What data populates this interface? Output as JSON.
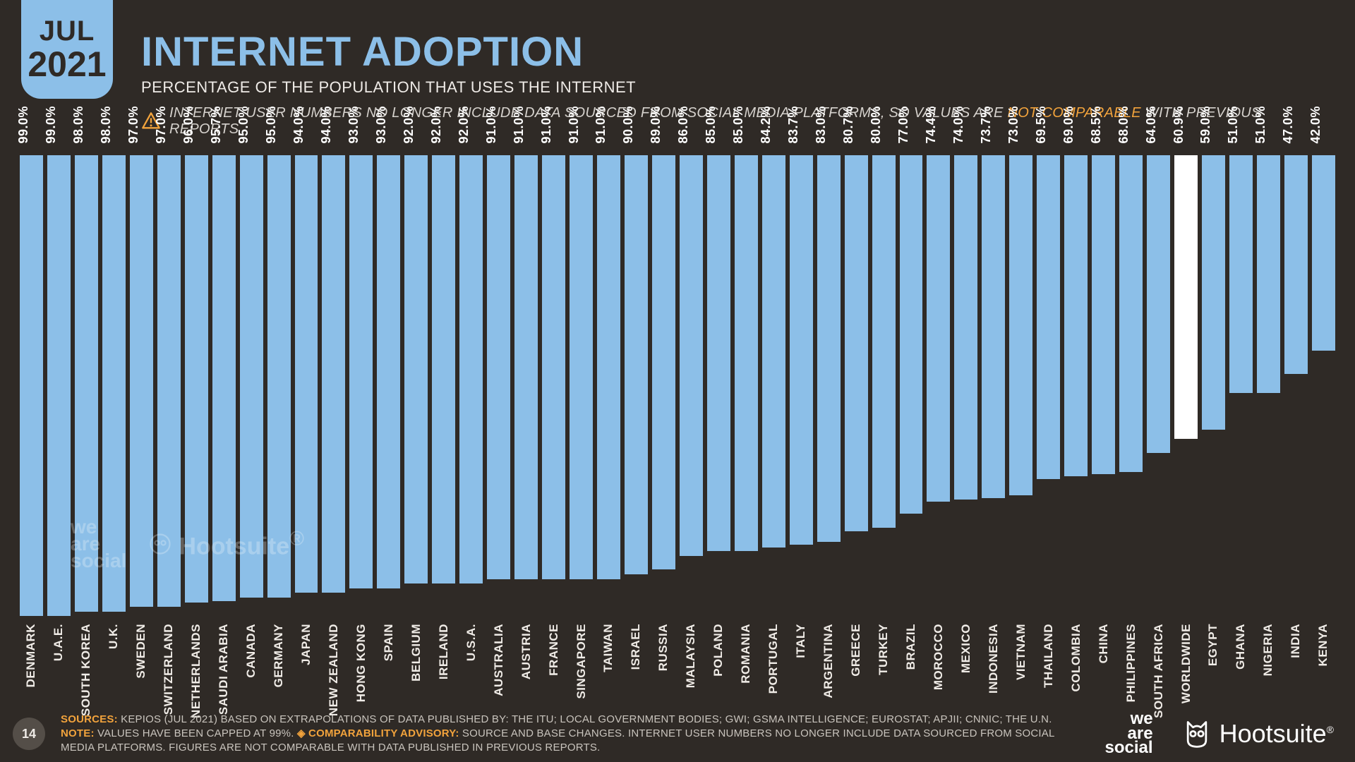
{
  "date": {
    "month": "JUL",
    "year": "2021"
  },
  "header": {
    "title": "INTERNET ADOPTION",
    "subtitle": "PERCENTAGE OF THE POPULATION THAT USES THE INTERNET",
    "warning_prefix": "INTERNET USER NUMBERS NO LONGER INCLUDE DATA SOURCED FROM SOCIAL MEDIA PLATFORMS, SO VALUES ARE ",
    "warning_highlight": "NOT COMPARABLE",
    "warning_suffix": " WITH PREVIOUS REPORTS"
  },
  "chart": {
    "type": "bar",
    "ymax": 100,
    "bar_color": "#8cbfe8",
    "highlight_color": "#ffffff",
    "background_color": "#2f2a26",
    "value_suffix": "%",
    "label_fontsize": 18,
    "axis_fontsize": 17,
    "bars": [
      {
        "label": "DENMARK",
        "value": 99.0
      },
      {
        "label": "U.A.E.",
        "value": 99.0
      },
      {
        "label": "SOUTH KOREA",
        "value": 98.0
      },
      {
        "label": "U.K.",
        "value": 98.0
      },
      {
        "label": "SWEDEN",
        "value": 97.0
      },
      {
        "label": "SWITZERLAND",
        "value": 97.0
      },
      {
        "label": "NETHERLANDS",
        "value": 96.0
      },
      {
        "label": "SAUDI ARABIA",
        "value": 95.7
      },
      {
        "label": "CANADA",
        "value": 95.0
      },
      {
        "label": "GERMANY",
        "value": 95.0
      },
      {
        "label": "JAPAN",
        "value": 94.0
      },
      {
        "label": "NEW ZEALAND",
        "value": 94.0
      },
      {
        "label": "HONG KONG",
        "value": 93.0
      },
      {
        "label": "SPAIN",
        "value": 93.0
      },
      {
        "label": "BELGIUM",
        "value": 92.0
      },
      {
        "label": "IRELAND",
        "value": 92.0
      },
      {
        "label": "U.S.A.",
        "value": 92.0
      },
      {
        "label": "AUSTRALIA",
        "value": 91.0
      },
      {
        "label": "AUSTRIA",
        "value": 91.0
      },
      {
        "label": "FRANCE",
        "value": 91.0
      },
      {
        "label": "SINGAPORE",
        "value": 91.0
      },
      {
        "label": "TAIWAN",
        "value": 91.0
      },
      {
        "label": "ISRAEL",
        "value": 90.0
      },
      {
        "label": "RUSSIA",
        "value": 89.0
      },
      {
        "label": "MALAYSIA",
        "value": 86.0
      },
      {
        "label": "POLAND",
        "value": 85.0
      },
      {
        "label": "ROMANIA",
        "value": 85.0
      },
      {
        "label": "PORTUGAL",
        "value": 84.2
      },
      {
        "label": "ITALY",
        "value": 83.7
      },
      {
        "label": "ARGENTINA",
        "value": 83.0
      },
      {
        "label": "GREECE",
        "value": 80.7
      },
      {
        "label": "TURKEY",
        "value": 80.0
      },
      {
        "label": "BRAZIL",
        "value": 77.0
      },
      {
        "label": "MOROCCO",
        "value": 74.4
      },
      {
        "label": "MEXICO",
        "value": 74.0
      },
      {
        "label": "INDONESIA",
        "value": 73.7
      },
      {
        "label": "VIETNAM",
        "value": 73.0
      },
      {
        "label": "THAILAND",
        "value": 69.5
      },
      {
        "label": "COLOMBIA",
        "value": 69.0
      },
      {
        "label": "CHINA",
        "value": 68.5
      },
      {
        "label": "PHILIPPINES",
        "value": 68.0
      },
      {
        "label": "SOUTH AFRICA",
        "value": 64.0
      },
      {
        "label": "WORLDWIDE",
        "value": 60.9,
        "highlight": true
      },
      {
        "label": "EGYPT",
        "value": 59.0
      },
      {
        "label": "GHANA",
        "value": 51.0
      },
      {
        "label": "NIGERIA",
        "value": 51.0
      },
      {
        "label": "INDIA",
        "value": 47.0
      },
      {
        "label": "KENYA",
        "value": 42.0
      }
    ]
  },
  "footer": {
    "page": "14",
    "sources_label": "SOURCES:",
    "sources_text": " KEPIOS (JUL 2021) BASED ON EXTRAPOLATIONS OF DATA PUBLISHED BY: THE ITU; LOCAL GOVERNMENT BODIES; GWI; GSMA INTELLIGENCE; EUROSTAT; APJII; CNNIC; THE U.N.",
    "note_label": "NOTE:",
    "note_text": " VALUES HAVE BEEN CAPPED AT 99%. ",
    "advisory_label": "◈ COMPARABILITY ADVISORY:",
    "advisory_text": " SOURCE AND BASE CHANGES. INTERNET USER NUMBERS NO LONGER INCLUDE DATA SOURCED FROM SOCIAL MEDIA PLATFORMS. FIGURES ARE NOT COMPARABLE WITH DATA PUBLISHED IN PREVIOUS REPORTS."
  },
  "logos": {
    "wearesocial": "we\nare\nsocial",
    "hootsuite": "Hootsuite",
    "hootsuite_reg": "®"
  }
}
